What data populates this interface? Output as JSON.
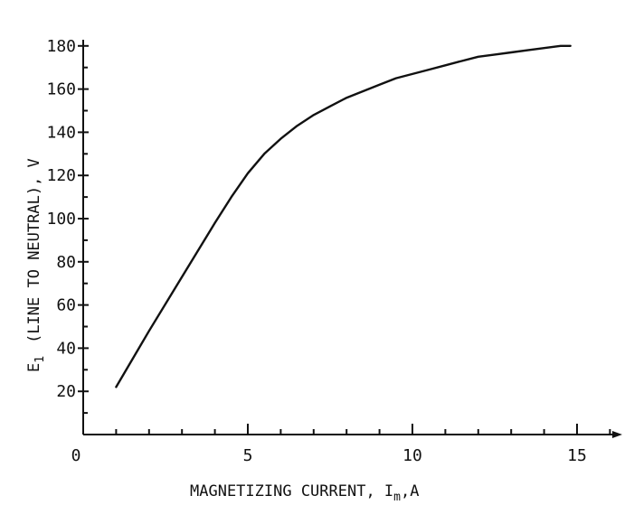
{
  "chart_data": {
    "type": "line",
    "xlabel": "MAGNETIZING CURRENT, I",
    "xlabel_sub": "m",
    "xlabel_tail": ",A",
    "ylabel": "E",
    "ylabel_sub": "1",
    "ylabel_tail": "(LINE TO NEUTRAL), V",
    "xlim": [
      0,
      16.2
    ],
    "ylim": [
      0,
      182
    ],
    "xticks": [
      0,
      5,
      10,
      15
    ],
    "yticks": [
      20,
      40,
      60,
      80,
      100,
      120,
      140,
      160,
      180
    ],
    "grid": false,
    "series": [
      {
        "x": [
          1.0,
          2.0,
          3.0,
          4.0,
          4.5,
          5.0,
          5.5,
          6.0,
          6.5,
          7.0,
          7.5,
          8.0,
          8.5,
          9.0,
          9.5,
          10.0,
          10.5,
          11.0,
          11.5,
          12.0,
          12.5,
          13.0,
          13.5,
          14.0,
          14.5,
          14.8
        ],
        "y": [
          22,
          48,
          73,
          98,
          110,
          121,
          130,
          137,
          143,
          148,
          152,
          156,
          159,
          162,
          165,
          167,
          169,
          171,
          173,
          175,
          176,
          177,
          178,
          179,
          180,
          180
        ]
      }
    ]
  }
}
